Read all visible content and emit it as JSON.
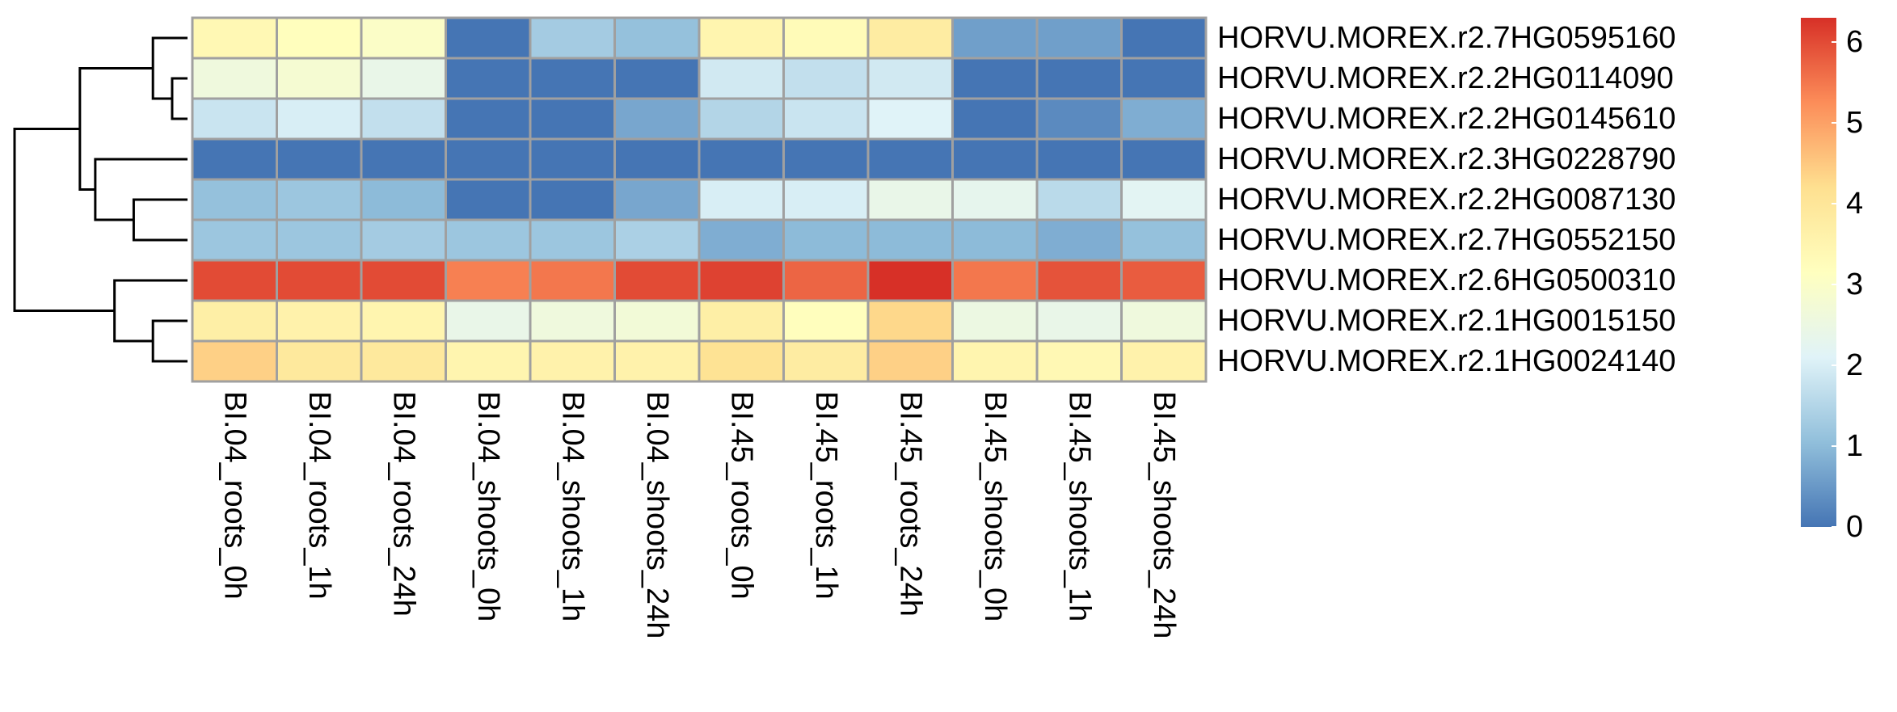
{
  "chart_data": {
    "type": "heatmap",
    "title": "",
    "columns": [
      "BI.04_roots_0h",
      "BI.04_roots_1h",
      "BI.04_roots_24h",
      "BI.04_shoots_0h",
      "BI.04_shoots_1h",
      "BI.04_shoots_24h",
      "BI.45_roots_0h",
      "BI.45_roots_1h",
      "BI.45_roots_24h",
      "BI.45_shoots_0h",
      "BI.45_shoots_1h",
      "BI.45_shoots_24h"
    ],
    "rows": [
      "HORVU.MOREX.r2.7HG0595160",
      "HORVU.MOREX.r2.2HG0114090",
      "HORVU.MOREX.r2.2HG0145610",
      "HORVU.MOREX.r2.3HG0228790",
      "HORVU.MOREX.r2.2HG0087130",
      "HORVU.MOREX.r2.7HG0552150",
      "HORVU.MOREX.r2.6HG0500310",
      "HORVU.MOREX.r2.1HG0015150",
      "HORVU.MOREX.r2.1HG0024140"
    ],
    "values": [
      [
        3.4,
        3.2,
        3.0,
        0.0,
        1.3,
        1.1,
        3.5,
        3.3,
        3.8,
        0.6,
        0.6,
        0.0
      ],
      [
        2.6,
        2.8,
        2.4,
        0.0,
        0.0,
        0.0,
        1.9,
        1.7,
        1.9,
        0.0,
        0.0,
        0.0
      ],
      [
        1.8,
        2.0,
        1.7,
        0.0,
        0.0,
        0.7,
        1.5,
        1.8,
        2.1,
        0.0,
        0.3,
        0.8
      ],
      [
        0.0,
        0.0,
        0.0,
        0.0,
        0.0,
        0.0,
        0.0,
        0.0,
        0.0,
        0.0,
        0.0,
        0.0
      ],
      [
        1.1,
        1.2,
        1.0,
        0.0,
        0.0,
        0.7,
        2.0,
        2.0,
        2.4,
        2.3,
        1.6,
        2.2
      ],
      [
        1.2,
        1.2,
        1.3,
        1.2,
        1.2,
        1.4,
        0.8,
        1.0,
        1.0,
        1.0,
        0.8,
        1.1
      ],
      [
        6.0,
        6.0,
        6.0,
        5.4,
        5.5,
        6.0,
        6.1,
        5.7,
        6.3,
        5.5,
        5.9,
        5.8
      ],
      [
        3.7,
        3.6,
        3.5,
        2.4,
        2.6,
        2.7,
        3.7,
        3.2,
        4.3,
        2.5,
        2.4,
        2.6
      ],
      [
        4.4,
        3.9,
        3.9,
        3.5,
        3.6,
        3.6,
        4.1,
        3.8,
        4.4,
        3.5,
        3.4,
        3.6
      ]
    ],
    "value_range": [
      0,
      6.3
    ],
    "colorbar_ticks": [
      0,
      1,
      2,
      3,
      4,
      5,
      6
    ],
    "colorscale": [
      "#4575b4",
      "#91bfdb",
      "#e0f3f8",
      "#ffffbf",
      "#fee090",
      "#fc8d59",
      "#d73027"
    ],
    "cell_border_color": "#a0a0a0",
    "dendrogram": {
      "side": "rows",
      "merges": [
        [
          -2,
          -3,
          0.4
        ],
        [
          -1,
          1,
          0.9
        ],
        [
          -5,
          -6,
          1.4
        ],
        [
          -4,
          3,
          2.4
        ],
        [
          2,
          4,
          2.8
        ],
        [
          -8,
          -9,
          0.9
        ],
        [
          -7,
          6,
          1.9
        ],
        [
          5,
          7,
          4.5
        ]
      ]
    }
  }
}
